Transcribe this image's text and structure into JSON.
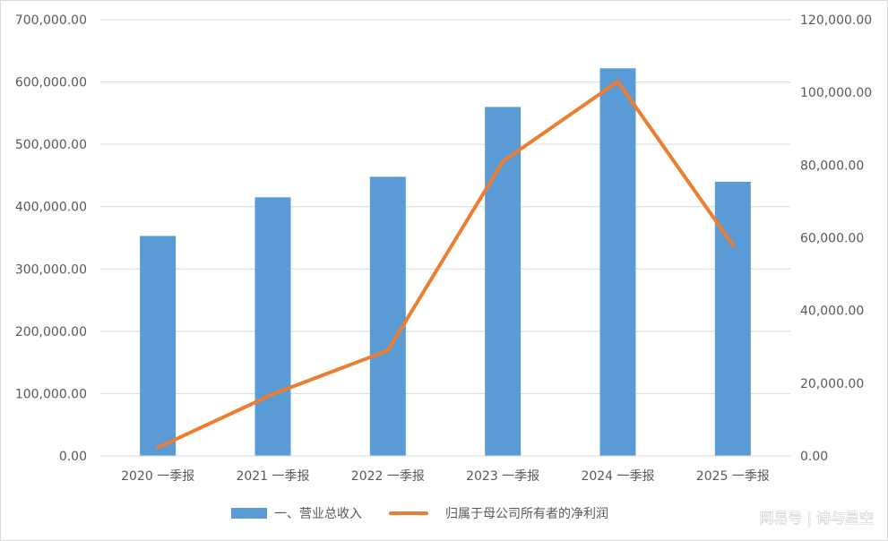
{
  "chart_data": {
    "type": "bar+line",
    "categories": [
      "2020 一季报",
      "2021 一季报",
      "2022 一季报",
      "2023 一季报",
      "2024 一季报",
      "2025 一季报"
    ],
    "series": [
      {
        "name": "一、营业总收入",
        "type": "bar",
        "axis": "left",
        "color": "#5b9bd5",
        "values": [
          353000,
          415000,
          448000,
          560000,
          622000,
          440000
        ]
      },
      {
        "name": "归属于母公司所有者的净利润",
        "type": "line",
        "axis": "right",
        "color": "#ed7d31",
        "values": [
          2300,
          17000,
          29000,
          81000,
          103000,
          58000
        ]
      }
    ],
    "y_left": {
      "ylim": [
        0,
        700000
      ],
      "ticks": [
        "0.00",
        "100,000.00",
        "200,000.00",
        "300,000.00",
        "400,000.00",
        "500,000.00",
        "600,000.00",
        "700,000.00"
      ]
    },
    "y_right": {
      "ylim": [
        0,
        120000
      ],
      "ticks": [
        "0.00",
        "20,000.00",
        "40,000.00",
        "60,000.00",
        "80,000.00",
        "100,000.00",
        "120,000.00"
      ]
    },
    "grid": true,
    "legend": "bottom"
  },
  "watermark": "网易号 | 诗与星空"
}
